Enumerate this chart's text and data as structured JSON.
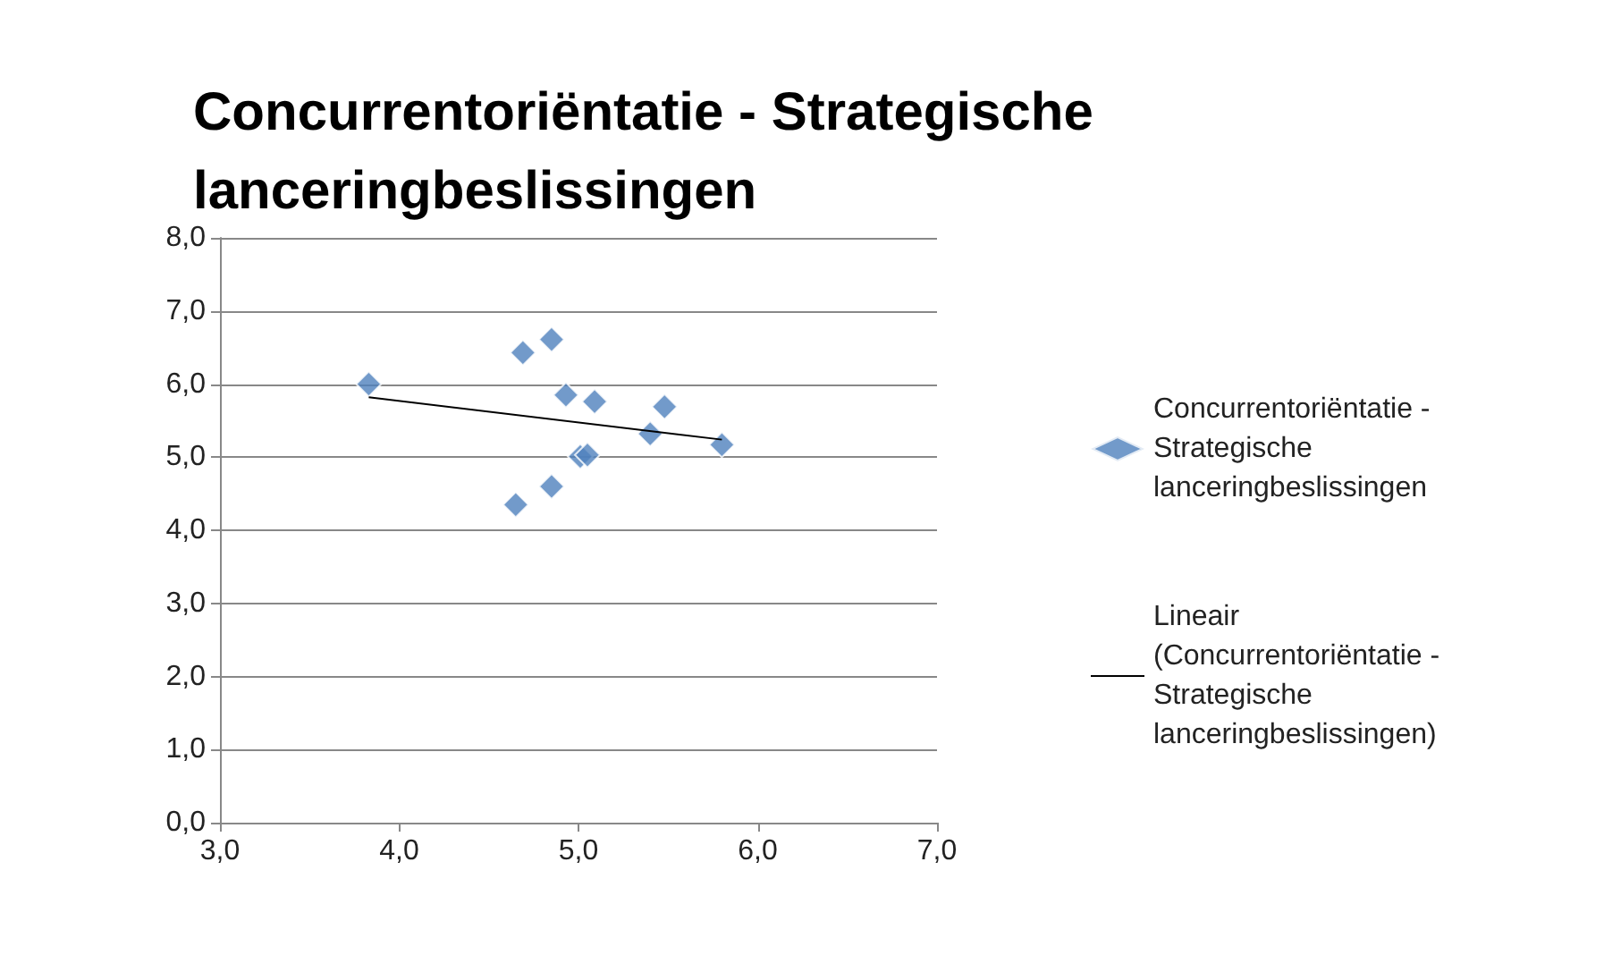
{
  "chart_data": {
    "type": "scatter",
    "title": "Concurrentoriëntatie - Strategische lanceringbeslissingen",
    "series": [
      {
        "name": "Concurrentoriëntatie - Strategische lanceringbeslissingen",
        "color": "#4f81bd",
        "marker": "diamond",
        "x": [
          3.83,
          4.69,
          4.85,
          4.93,
          5.09,
          5.48,
          5.4,
          5.8,
          5.01,
          5.05,
          4.85,
          4.65
        ],
        "values": [
          6.0,
          6.43,
          6.61,
          5.85,
          5.76,
          5.69,
          5.32,
          5.17,
          5.01,
          5.03,
          4.6,
          4.35
        ]
      },
      {
        "name": "Lineair (Concurrentoriëntatie - Strategische lanceringbeslissingen)",
        "type": "line",
        "color": "#000000",
        "marker": "none",
        "line_style": "solid",
        "x": [
          3.83,
          5.8
        ],
        "values": [
          5.82,
          5.24
        ]
      }
    ],
    "xlim": [
      3,
      7
    ],
    "xticks": [
      {
        "value": 3,
        "label": "3,0"
      },
      {
        "value": 4,
        "label": "4,0"
      },
      {
        "value": 5,
        "label": "5,0"
      },
      {
        "value": 6,
        "label": "6,0"
      },
      {
        "value": 7,
        "label": "7,0"
      }
    ],
    "ylim": [
      0,
      8
    ],
    "yticks": [
      {
        "value": 0,
        "label": "0,0"
      },
      {
        "value": 1,
        "label": "1,0"
      },
      {
        "value": 2,
        "label": "2,0"
      },
      {
        "value": 3,
        "label": "3,0"
      },
      {
        "value": 4,
        "label": "4,0"
      },
      {
        "value": 5,
        "label": "5,0"
      },
      {
        "value": 6,
        "label": "6,0"
      },
      {
        "value": 7,
        "label": "7,0"
      },
      {
        "value": 8,
        "label": "8,0"
      }
    ],
    "grid": "y",
    "legend": "right"
  }
}
